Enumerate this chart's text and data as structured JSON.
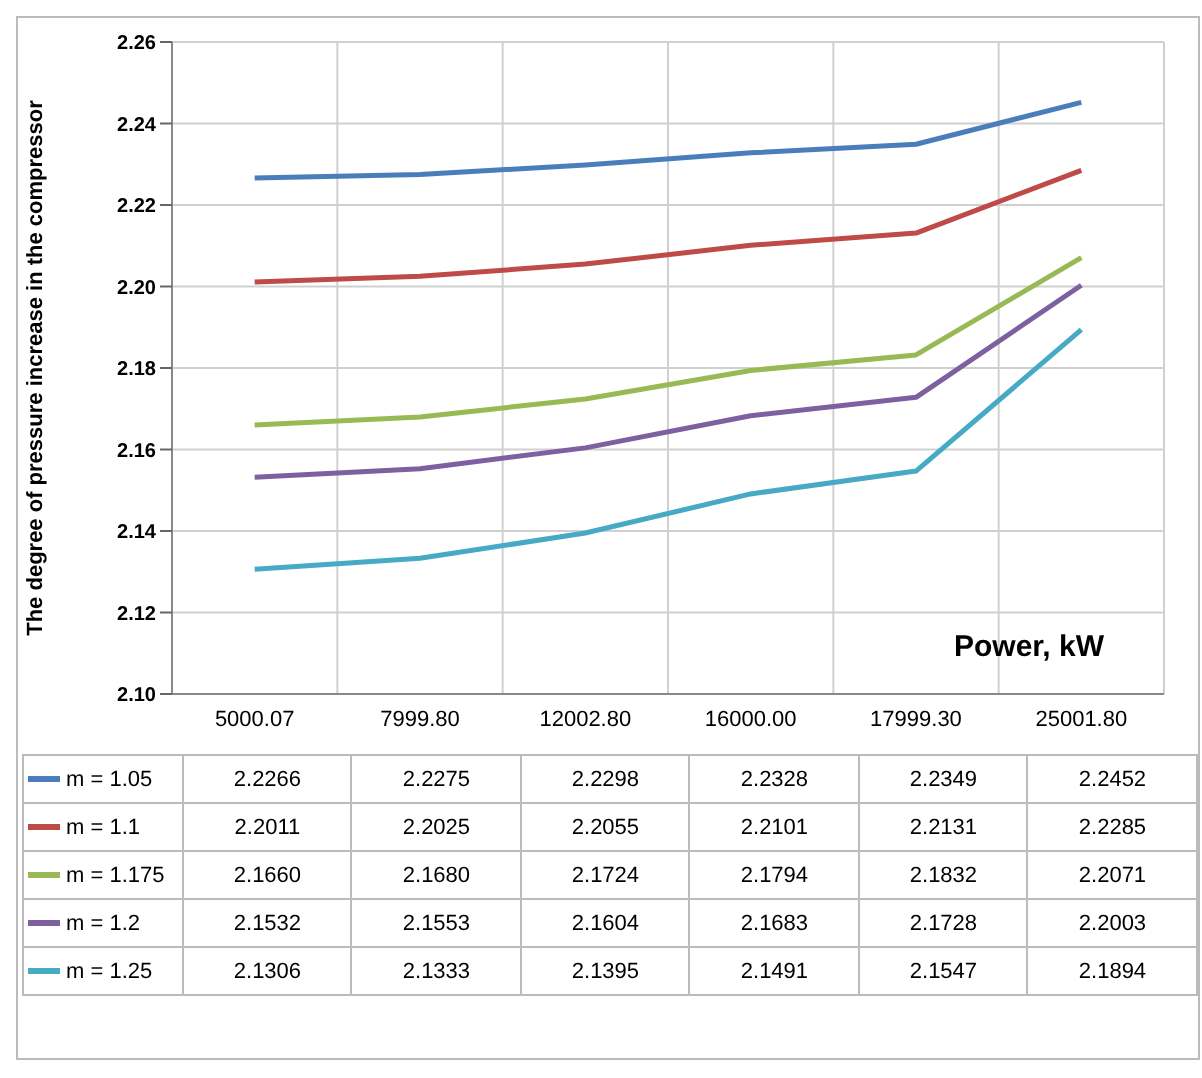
{
  "chart_data": {
    "type": "line",
    "ylabel": "The degree of pressure increase in the compressor",
    "xlabel": "Power, kW",
    "categories": [
      "5000.07",
      "7999.80",
      "12002.80",
      "16000.00",
      "17999.30",
      "25001.80"
    ],
    "ylim": [
      2.1,
      2.26
    ],
    "yticks": [
      {
        "value": 2.1,
        "label": "2.10"
      },
      {
        "value": 2.12,
        "label": "2.12"
      },
      {
        "value": 2.14,
        "label": "2.14"
      },
      {
        "value": 2.16,
        "label": "2.16"
      },
      {
        "value": 2.18,
        "label": "2.18"
      },
      {
        "value": 2.2,
        "label": "2.20"
      },
      {
        "value": 2.22,
        "label": "2.22"
      },
      {
        "value": 2.24,
        "label": "2.24"
      },
      {
        "value": 2.26,
        "label": "2.26"
      }
    ],
    "grid": true,
    "legend": "bottom",
    "marker": "none",
    "line_style": "solid",
    "series": [
      {
        "name": "m = 1.05",
        "color": "#4a7ebb",
        "values": [
          2.2266,
          2.2275,
          2.2298,
          2.2328,
          2.2349,
          2.2452
        ],
        "value_labels": [
          "2.2266",
          "2.2275",
          "2.2298",
          "2.2328",
          "2.2349",
          "2.2452"
        ]
      },
      {
        "name": "m = 1.1",
        "color": "#be4b48",
        "values": [
          2.2011,
          2.2025,
          2.2055,
          2.2101,
          2.2131,
          2.2285
        ],
        "value_labels": [
          "2.2011",
          "2.2025",
          "2.2055",
          "2.2101",
          "2.2131",
          "2.2285"
        ]
      },
      {
        "name": "m = 1.175",
        "color": "#98b954",
        "values": [
          2.166,
          2.168,
          2.1724,
          2.1794,
          2.1832,
          2.2071
        ],
        "value_labels": [
          "2.1660",
          "2.1680",
          "2.1724",
          "2.1794",
          "2.1832",
          "2.2071"
        ]
      },
      {
        "name": "m = 1.2",
        "color": "#7d60a0",
        "values": [
          2.1532,
          2.1553,
          2.1604,
          2.1683,
          2.1728,
          2.2003
        ],
        "value_labels": [
          "2.1532",
          "2.1553",
          "2.1604",
          "2.1683",
          "2.1728",
          "2.2003"
        ]
      },
      {
        "name": "m = 1.25",
        "color": "#46aac5",
        "values": [
          2.1306,
          2.1333,
          2.1395,
          2.1491,
          2.1547,
          2.1894
        ],
        "value_labels": [
          "2.1306",
          "2.1333",
          "2.1395",
          "2.1491",
          "2.1547",
          "2.1894"
        ]
      }
    ]
  }
}
